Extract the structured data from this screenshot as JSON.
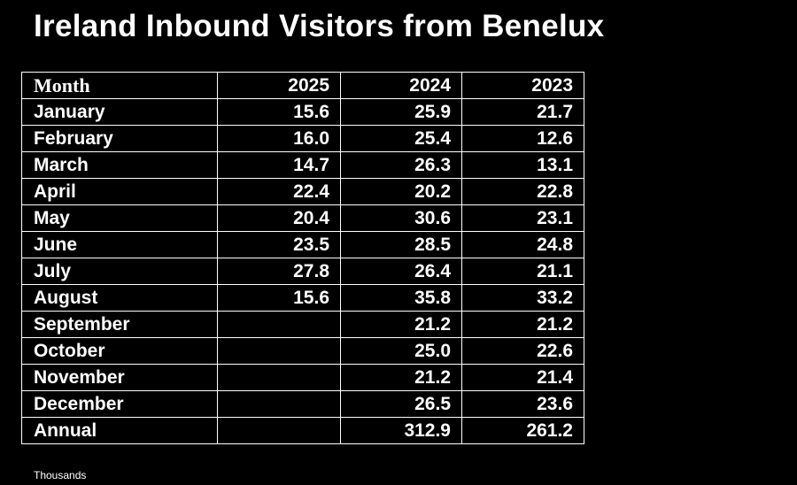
{
  "title": "Ireland Inbound Visitors from Benelux",
  "table": {
    "header": [
      "Month",
      "2025",
      "2024",
      "2023"
    ],
    "rows": [
      [
        "January",
        "15.6",
        "25.9",
        "21.7"
      ],
      [
        "February",
        "16.0",
        "25.4",
        "12.6"
      ],
      [
        "March",
        "14.7",
        "26.3",
        "13.1"
      ],
      [
        "April",
        "22.4",
        "20.2",
        "22.8"
      ],
      [
        "May",
        "20.4",
        "30.6",
        "23.1"
      ],
      [
        "June",
        "23.5",
        "28.5",
        "24.8"
      ],
      [
        "July",
        "27.8",
        "26.4",
        "21.1"
      ],
      [
        "August",
        "15.6",
        "35.8",
        "33.2"
      ],
      [
        "September",
        null,
        "21.2",
        "21.2"
      ],
      [
        "October",
        null,
        "25.0",
        "22.6"
      ],
      [
        "November",
        null,
        "21.2",
        "21.4"
      ],
      [
        "December",
        null,
        "26.5",
        "23.6"
      ],
      [
        "Annual",
        null,
        "312.9",
        "261.2"
      ]
    ]
  },
  "footnote": "Thousands"
}
